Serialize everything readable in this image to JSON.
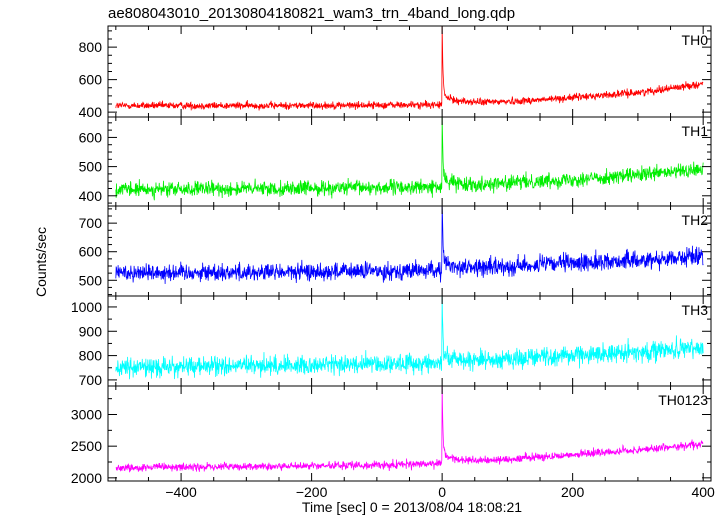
{
  "chart_data": {
    "type": "line",
    "title": "ae808043010_20130804180821_wam3_trn_4band_long.qdp",
    "xlabel": "Time [sec] 0 = 2013/08/04 18:08:21",
    "ylabel": "Counts/sec",
    "xlim": [
      -512,
      412
    ],
    "xticks": [
      -400,
      -200,
      0,
      200,
      400
    ],
    "xtick_labels": [
      "−400",
      "−200",
      "0",
      "200",
      "400"
    ],
    "grid": false,
    "panels": [
      {
        "name": "TH0",
        "color": "#ff0000",
        "ylim": [
          370,
          930
        ],
        "yticks": [
          400,
          600,
          800
        ],
        "yticks_minor_step": 50,
        "baseline": [
          [
            -512,
            440
          ],
          [
            -250,
            440
          ],
          [
            0,
            445
          ],
          [
            150,
            475
          ],
          [
            300,
            520
          ],
          [
            400,
            575
          ]
        ],
        "noise": 16,
        "spike": {
          "x": 0,
          "peak": 920
        }
      },
      {
        "name": "TH1",
        "color": "#00ee00",
        "ylim": [
          365,
          670
        ],
        "yticks": [
          400,
          500,
          600
        ],
        "yticks_minor_step": 25,
        "baseline": [
          [
            -512,
            420
          ],
          [
            -250,
            425
          ],
          [
            0,
            430
          ],
          [
            150,
            450
          ],
          [
            300,
            470
          ],
          [
            400,
            490
          ]
        ],
        "noise": 18,
        "spike": {
          "x": 0,
          "peak": 665
        }
      },
      {
        "name": "TH2",
        "color": "#0000ff",
        "ylim": [
          445,
          760
        ],
        "yticks": [
          500,
          600,
          700
        ],
        "yticks_minor_step": 25,
        "baseline": [
          [
            -512,
            528
          ],
          [
            -250,
            528
          ],
          [
            0,
            535
          ],
          [
            150,
            555
          ],
          [
            300,
            570
          ],
          [
            400,
            585
          ]
        ],
        "noise": 22,
        "spike": {
          "x": 0,
          "peak": 755
        }
      },
      {
        "name": "TH3",
        "color": "#00ffff",
        "ylim": [
          675,
          1045
        ],
        "yticks": [
          700,
          800,
          900,
          1000
        ],
        "yticks_minor_step": 50,
        "baseline": [
          [
            -512,
            750
          ],
          [
            -250,
            760
          ],
          [
            0,
            770
          ],
          [
            150,
            795
          ],
          [
            300,
            815
          ],
          [
            400,
            830
          ]
        ],
        "noise": 28,
        "spike": {
          "x": 0,
          "peak": 1040
        }
      },
      {
        "name": "TH0123",
        "color": "#ff00ff",
        "ylim": [
          1950,
          3450
        ],
        "yticks": [
          2000,
          2500,
          3000
        ],
        "yticks_minor_step": 250,
        "baseline": [
          [
            -512,
            2160
          ],
          [
            -250,
            2180
          ],
          [
            0,
            2220
          ],
          [
            150,
            2330
          ],
          [
            300,
            2440
          ],
          [
            400,
            2530
          ]
        ],
        "noise": 45,
        "spike": {
          "x": 0,
          "peak": 3420
        }
      }
    ]
  }
}
